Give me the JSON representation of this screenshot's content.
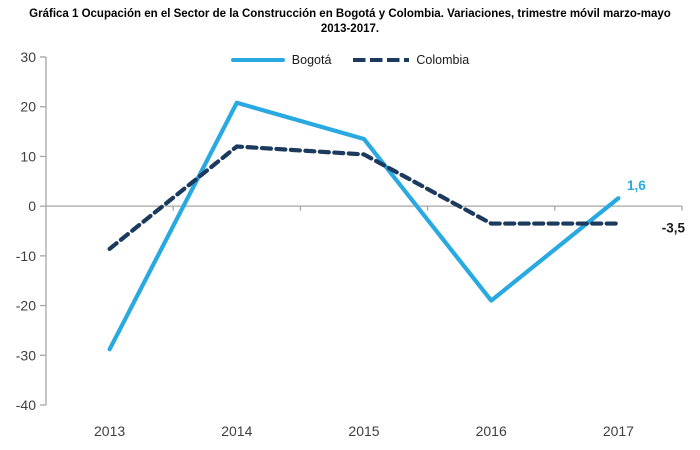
{
  "chart_data": {
    "type": "line",
    "title": "Gráfica 1  Ocupación en el Sector de la Construcción en Bogotá y Colombia. Variaciones, trimestre móvil marzo-mayo 2013-2017.",
    "categories": [
      "2013",
      "2014",
      "2015",
      "2016",
      "2017"
    ],
    "series": [
      {
        "name": "Bogotá",
        "color": "#29A9E1",
        "line_style": "solid",
        "values": [
          -28.8,
          20.8,
          13.5,
          -19.0,
          1.6
        ],
        "end_label": "1,6",
        "end_label_color": "#29A9E1",
        "end_label_offset": [
          18,
          -8
        ]
      },
      {
        "name": "Colombia",
        "color": "#1C3A5E",
        "line_style": "dashed",
        "values": [
          -8.6,
          12.0,
          10.4,
          -3.5,
          -3.5
        ],
        "end_label": "-3,5",
        "end_label_color": "#1A1A1A",
        "end_label_offset": [
          55,
          9
        ]
      }
    ],
    "xlabel": "",
    "ylabel": "",
    "ylim": [
      -40,
      30
    ],
    "ytick_step": 10,
    "grid": "zero-baseline-only",
    "legend_position": "top-center",
    "axis_color": "#A6A6A6",
    "tick_label_color": "#3F3F3F"
  }
}
